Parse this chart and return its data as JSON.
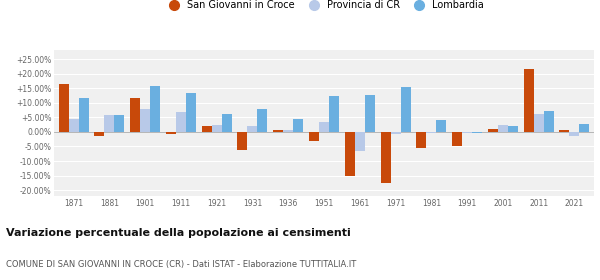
{
  "years": [
    1871,
    1881,
    1901,
    1911,
    1921,
    1931,
    1936,
    1951,
    1961,
    1971,
    1981,
    1991,
    2001,
    2011,
    2021
  ],
  "san_giovanni": [
    16.5,
    -1.5,
    11.5,
    -0.8,
    2.0,
    -6.2,
    0.7,
    -3.2,
    -15.0,
    -17.5,
    -5.5,
    -5.0,
    1.0,
    21.5,
    0.8
  ],
  "provincia_cr": [
    4.5,
    5.8,
    8.0,
    7.0,
    2.5,
    2.0,
    0.5,
    3.5,
    -6.5,
    -0.8,
    -0.5,
    -0.5,
    2.5,
    6.2,
    -1.5
  ],
  "lombardia": [
    11.5,
    5.8,
    15.8,
    13.3,
    6.0,
    7.8,
    4.3,
    12.5,
    12.8,
    15.3,
    4.0,
    -0.3,
    2.0,
    7.2,
    2.8
  ],
  "color_sgc": "#c8490a",
  "color_prov": "#b8c9e8",
  "color_lomb": "#6aafe0",
  "yticks": [
    -20.0,
    -15.0,
    -10.0,
    -5.0,
    0.0,
    5.0,
    10.0,
    15.0,
    20.0,
    25.0
  ],
  "ylim": [
    -22,
    28
  ],
  "title": "Variazione percentuale della popolazione ai censimenti",
  "subtitle": "COMUNE DI SAN GIOVANNI IN CROCE (CR) - Dati ISTAT - Elaborazione TUTTITALIA.IT",
  "legend_labels": [
    "San Giovanni in Croce",
    "Provincia di CR",
    "Lombardia"
  ],
  "background_color": "#f0f0f0"
}
